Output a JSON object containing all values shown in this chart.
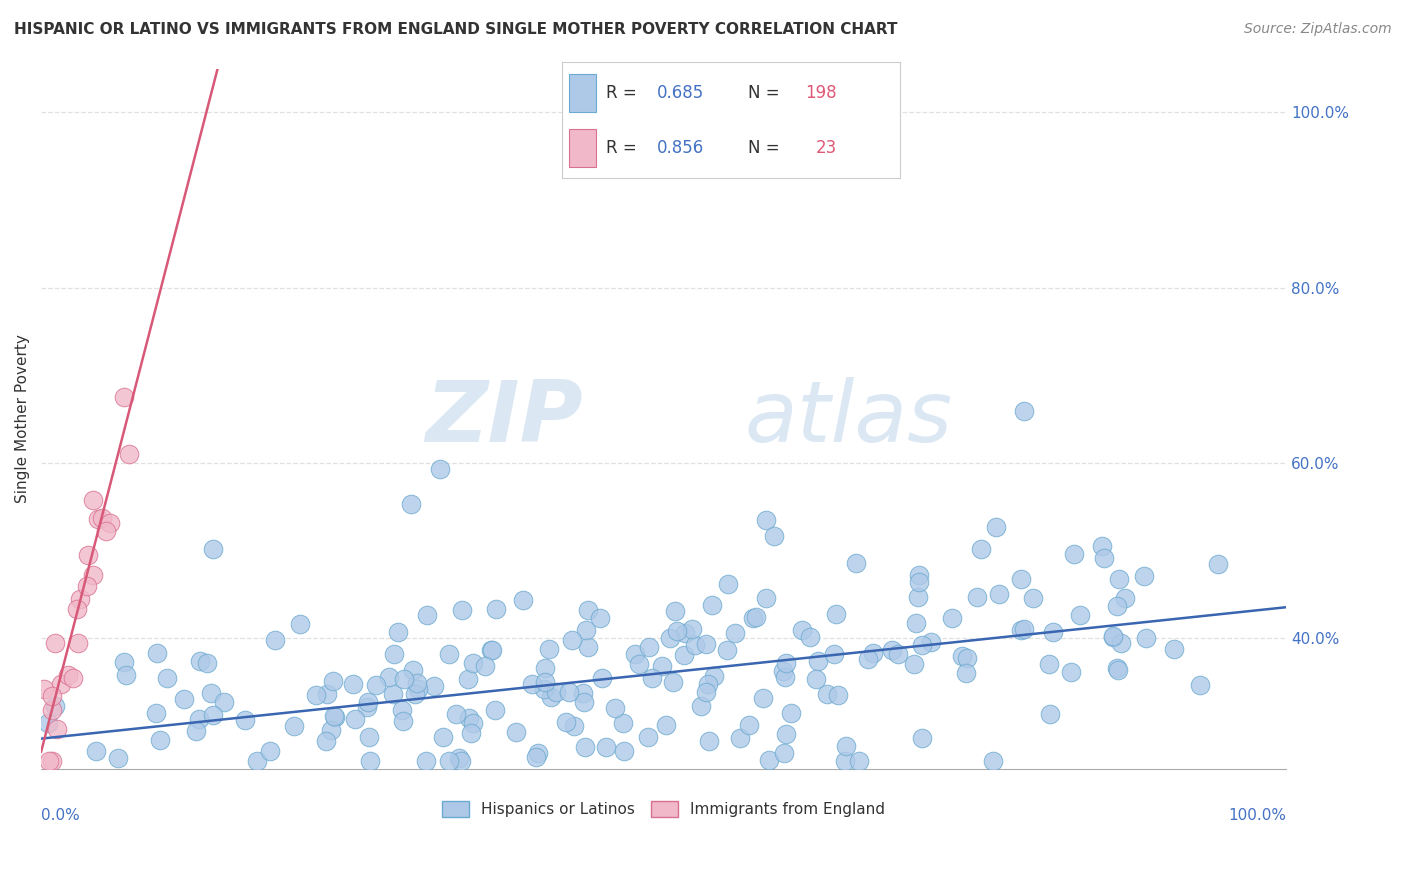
{
  "title": "HISPANIC OR LATINO VS IMMIGRANTS FROM ENGLAND SINGLE MOTHER POVERTY CORRELATION CHART",
  "source": "Source: ZipAtlas.com",
  "ylabel": "Single Mother Poverty",
  "watermark_zip": "ZIP",
  "watermark_atlas": "atlas",
  "series1_R": 0.685,
  "series1_N": 198,
  "series2_R": 0.856,
  "series2_N": 23,
  "xlim": [
    0,
    1
  ],
  "ylim": [
    0.25,
    1.05
  ],
  "yticks": [
    0.4,
    0.6,
    0.8,
    1.0
  ],
  "ytick_labels": [
    "40.0%",
    "60.0%",
    "80.0%",
    "100.0%"
  ],
  "blue_color": "#aec9e8",
  "blue_edge": "#6baad0",
  "pink_color": "#f0b8c8",
  "pink_edge": "#d87090",
  "trend_blue": "#3a65b0",
  "trend_pink": "#d85878",
  "background_color": "#ffffff",
  "text_color": "#333333",
  "legend_R_color": "#4472c4",
  "legend_N_color": "#e05878",
  "grid_color": "#e0e0e0",
  "title_fontsize": 11,
  "source_fontsize": 10,
  "ytick_fontsize": 11,
  "ylabel_fontsize": 11,
  "legend_fontsize": 11
}
